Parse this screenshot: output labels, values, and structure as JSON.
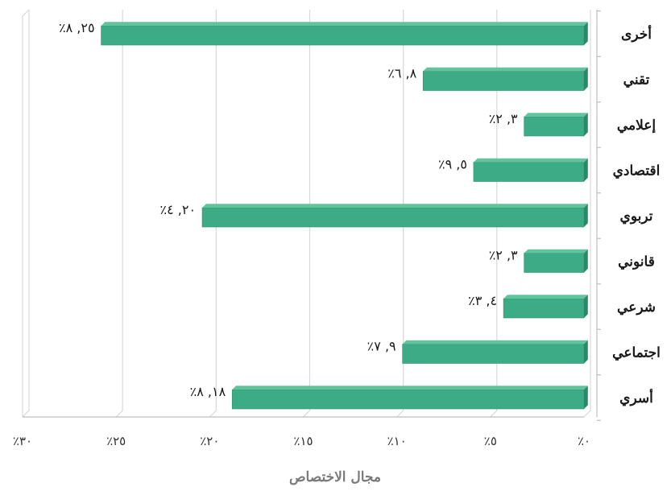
{
  "chart_data": {
    "type": "bar",
    "orientation": "horizontal",
    "direction": "rtl",
    "categories": [
      "أخرى",
      "تقني",
      "إعلامي",
      "اقتصادي",
      "تربوي",
      "قانوني",
      "شرعي",
      "اجتماعي",
      "أسري"
    ],
    "values": [
      25.8,
      8.6,
      3.2,
      5.9,
      20.4,
      3.2,
      4.3,
      9.7,
      18.8
    ],
    "value_labels": [
      "٪٢٥, ٨",
      "٪٨, ٦",
      "٪٣, ٢",
      "٪٥, ٩",
      "٪٢٠, ٤",
      "٪٣, ٢",
      "٪٤, ٣",
      "٪٩, ٧",
      "٪١٨, ٨"
    ],
    "tick_values": [
      0,
      5,
      10,
      15,
      20,
      25,
      30
    ],
    "tick_labels": [
      "٪٠",
      "٪٥",
      "٪١٠",
      "٪١٥",
      "٪٢٠",
      "٪٢٥",
      "٪٣٠"
    ],
    "xlim": [
      0,
      30
    ],
    "xlabel": "مجال الاختصاص",
    "ylabel": "",
    "title": "",
    "grid": true,
    "legend": "none",
    "colors": {
      "bar_front": "#3dac86",
      "bar_top": "#62c49f",
      "bar_side": "#2a8a68",
      "grid": "#d8d8d8",
      "axis": "#bdbdbd"
    }
  }
}
